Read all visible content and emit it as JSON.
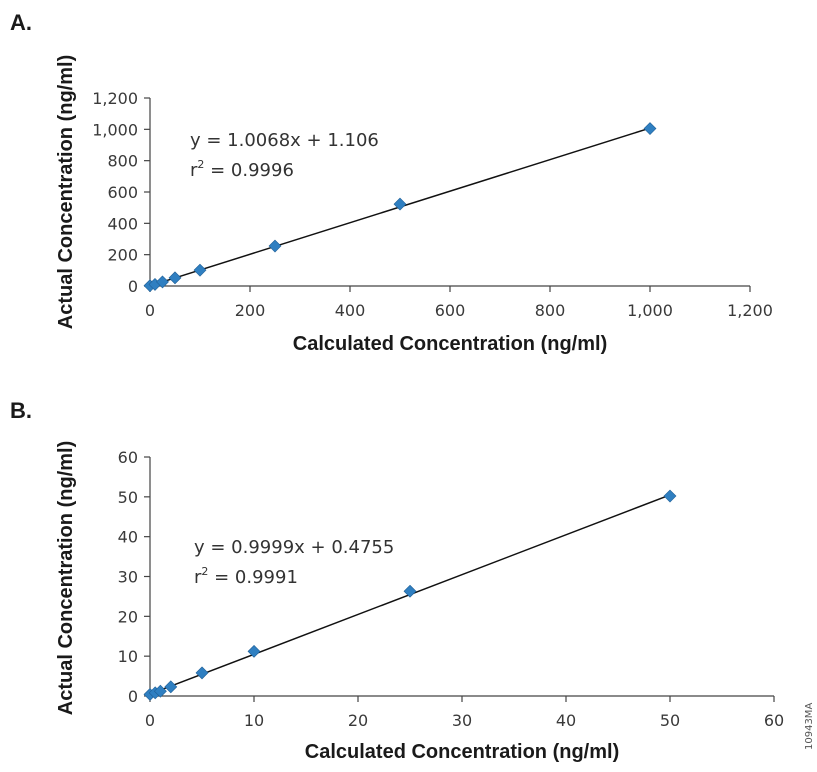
{
  "figure_code": "10943MA",
  "colors": {
    "marker": "#2f7fc1",
    "fit_line": "#111111",
    "axis": "#444444"
  },
  "chart_data": [
    {
      "type": "scatter",
      "panel": "A.",
      "xlabel": "Calculated Concentration (ng/ml)",
      "ylabel": "Actual Concentration (ng/ml)",
      "xlim": [
        0,
        1200
      ],
      "ylim": [
        0,
        1200
      ],
      "xticks": [
        0,
        200,
        400,
        600,
        800,
        1000,
        1200
      ],
      "xtick_labels": [
        "0",
        "200",
        "400",
        "600",
        "800",
        "1,000",
        "1,200"
      ],
      "yticks": [
        0,
        200,
        400,
        600,
        800,
        1000,
        1200
      ],
      "ytick_labels": [
        "0",
        "200",
        "400",
        "600",
        "800",
        "1,000",
        "1,200"
      ],
      "points": {
        "x": [
          0,
          10,
          25,
          50,
          100,
          250,
          500,
          1000
        ],
        "y": [
          2,
          10,
          26,
          52,
          101,
          255,
          523,
          1005
        ]
      },
      "fit": {
        "slope": 1.0068,
        "intercept": 1.106
      },
      "equation": "y = 1.0068x + 1.106",
      "r2_prefix": "r",
      "r2_sup": "2",
      "r2_value": " = 0.9996"
    },
    {
      "type": "scatter",
      "panel": "B.",
      "xlabel": "Calculated Concentration (ng/ml)",
      "ylabel": "Actual Concentration (ng/ml)",
      "xlim": [
        0,
        60
      ],
      "ylim": [
        0,
        60
      ],
      "xticks": [
        0,
        10,
        20,
        30,
        40,
        50,
        60
      ],
      "xtick_labels": [
        "0",
        "10",
        "20",
        "30",
        "40",
        "50",
        "60"
      ],
      "yticks": [
        0,
        10,
        20,
        30,
        40,
        50,
        60
      ],
      "ytick_labels": [
        "0",
        "10",
        "20",
        "30",
        "40",
        "50",
        "60"
      ],
      "points": {
        "x": [
          0,
          0.5,
          1,
          2,
          5,
          10,
          25,
          50
        ],
        "y": [
          0.4,
          0.8,
          1.2,
          2.3,
          5.8,
          11.2,
          26.3,
          50.2
        ]
      },
      "fit": {
        "slope": 0.9999,
        "intercept": 0.4755
      },
      "equation": "y = 0.9999x + 0.4755",
      "r2_prefix": "r",
      "r2_sup": "2",
      "r2_value": " = 0.9991"
    }
  ]
}
